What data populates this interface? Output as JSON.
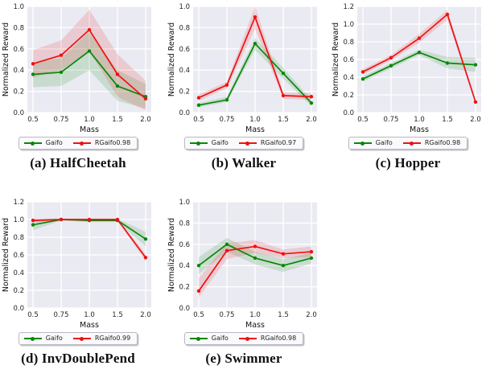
{
  "styles": {
    "plot_bg": "#eaeaf2",
    "grid_color": "#ffffff",
    "tick_color": "#262626",
    "axis_label_color": "#111111",
    "band_opacity": 0.15,
    "gaifo_color": "#0a870a",
    "rgaifo_color": "#ee1111"
  },
  "chart_data": [
    {
      "id": "halfcheetah",
      "type": "line",
      "caption": "(a) HalfCheetah",
      "xlabel": "Mass",
      "ylabel": "Normalized Reward",
      "x_categories": [
        "0.5",
        "0.75",
        "1.0",
        "1.5",
        "2.0"
      ],
      "ylim": [
        0.0,
        1.0
      ],
      "yticks": [
        "0.0",
        "0.2",
        "0.4",
        "0.6",
        "0.8",
        "1.0"
      ],
      "grid": true,
      "legend_position": "below",
      "series": [
        {
          "name": "Gaifo",
          "color": "#0a870a",
          "values": [
            0.36,
            0.38,
            0.58,
            0.25,
            0.15
          ],
          "band_lower": [
            0.24,
            0.25,
            0.4,
            0.11,
            0.04
          ],
          "band_upper": [
            0.47,
            0.51,
            0.76,
            0.4,
            0.27
          ]
        },
        {
          "name": "RGaifo0.98",
          "color": "#ee1111",
          "values": [
            0.46,
            0.54,
            0.78,
            0.36,
            0.13
          ],
          "band_lower": [
            0.33,
            0.4,
            0.58,
            0.15,
            0.02
          ],
          "band_upper": [
            0.59,
            0.68,
            0.97,
            0.55,
            0.3
          ]
        }
      ]
    },
    {
      "id": "walker",
      "type": "line",
      "caption": "(b) Walker",
      "xlabel": "Mass",
      "ylabel": "Normalized Reward",
      "x_categories": [
        "0.5",
        "0.75",
        "1.0",
        "1.5",
        "2.0"
      ],
      "ylim": [
        0.0,
        1.0
      ],
      "yticks": [
        "0.0",
        "0.2",
        "0.4",
        "0.6",
        "0.8",
        "1.0"
      ],
      "grid": true,
      "legend_position": "below",
      "series": [
        {
          "name": "Gaifo",
          "color": "#0a870a",
          "values": [
            0.07,
            0.12,
            0.65,
            0.37,
            0.09
          ],
          "band_lower": [
            0.05,
            0.1,
            0.59,
            0.32,
            0.06
          ],
          "band_upper": [
            0.09,
            0.15,
            0.7,
            0.42,
            0.12
          ]
        },
        {
          "name": "RGaifo0.97",
          "color": "#ee1111",
          "values": [
            0.14,
            0.26,
            0.9,
            0.16,
            0.15
          ],
          "band_lower": [
            0.11,
            0.23,
            0.79,
            0.13,
            0.12
          ],
          "band_upper": [
            0.17,
            0.29,
            1.0,
            0.19,
            0.18
          ]
        }
      ]
    },
    {
      "id": "hopper",
      "type": "line",
      "caption": "(c) Hopper",
      "xlabel": "Mass",
      "ylabel": "Normalized Reward",
      "x_categories": [
        "0.5",
        "0.75",
        "1.0",
        "1.5",
        "2.0"
      ],
      "ylim": [
        0.0,
        1.2
      ],
      "yticks": [
        "0.0",
        "0.2",
        "0.4",
        "0.6",
        "0.8",
        "1.0",
        "1.2"
      ],
      "grid": true,
      "legend_position": "below",
      "series": [
        {
          "name": "Gaifo",
          "color": "#0a870a",
          "values": [
            0.38,
            0.53,
            0.68,
            0.56,
            0.54
          ],
          "band_lower": [
            0.35,
            0.5,
            0.65,
            0.5,
            0.46
          ],
          "band_upper": [
            0.41,
            0.56,
            0.71,
            0.63,
            0.62
          ]
        },
        {
          "name": "RGaifo0.98",
          "color": "#ee1111",
          "values": [
            0.46,
            0.62,
            0.84,
            1.11,
            0.12
          ],
          "band_lower": [
            0.43,
            0.59,
            0.79,
            1.05,
            0.1
          ],
          "band_upper": [
            0.49,
            0.65,
            0.89,
            1.16,
            0.14
          ]
        }
      ]
    },
    {
      "id": "invdoublepend",
      "type": "line",
      "caption": "(d) InvDoublePend",
      "xlabel": "Mass",
      "ylabel": "Normalized Reward",
      "x_categories": [
        "0.5",
        "0.75",
        "1.0",
        "1.5",
        "2.0"
      ],
      "ylim": [
        0.0,
        1.2
      ],
      "yticks": [
        "0.0",
        "0.2",
        "0.4",
        "0.6",
        "0.8",
        "1.0",
        "1.2"
      ],
      "grid": true,
      "legend_position": "below",
      "series": [
        {
          "name": "Gaifo",
          "color": "#0a870a",
          "values": [
            0.94,
            1.0,
            0.99,
            0.99,
            0.78
          ],
          "band_lower": [
            0.88,
            0.99,
            0.97,
            0.97,
            0.7
          ],
          "band_upper": [
            1.0,
            1.01,
            1.01,
            1.01,
            0.86
          ]
        },
        {
          "name": "RGaifo0.99",
          "color": "#ee1111",
          "values": [
            0.99,
            1.0,
            1.0,
            1.0,
            0.57
          ],
          "band_lower": [
            0.97,
            0.99,
            0.99,
            0.99,
            0.53
          ],
          "band_upper": [
            1.01,
            1.01,
            1.01,
            1.01,
            0.61
          ]
        }
      ]
    },
    {
      "id": "swimmer",
      "type": "line",
      "caption": "(e) Swimmer",
      "xlabel": "Mass",
      "ylabel": "Normalized Reward",
      "x_categories": [
        "0.5",
        "0.75",
        "1.0",
        "1.5",
        "2.0"
      ],
      "ylim": [
        0.0,
        1.0
      ],
      "yticks": [
        "0.0",
        "0.2",
        "0.4",
        "0.6",
        "0.8",
        "1.0"
      ],
      "grid": true,
      "legend_position": "below",
      "series": [
        {
          "name": "Gaifo",
          "color": "#0a870a",
          "values": [
            0.4,
            0.6,
            0.47,
            0.4,
            0.47
          ],
          "band_lower": [
            0.32,
            0.53,
            0.41,
            0.34,
            0.42
          ],
          "band_upper": [
            0.48,
            0.66,
            0.53,
            0.46,
            0.52
          ]
        },
        {
          "name": "RGaifo0.98",
          "color": "#ee1111",
          "values": [
            0.16,
            0.54,
            0.58,
            0.51,
            0.53
          ],
          "band_lower": [
            0.1,
            0.46,
            0.52,
            0.47,
            0.48
          ],
          "band_upper": [
            0.28,
            0.61,
            0.64,
            0.55,
            0.58
          ]
        }
      ]
    }
  ]
}
